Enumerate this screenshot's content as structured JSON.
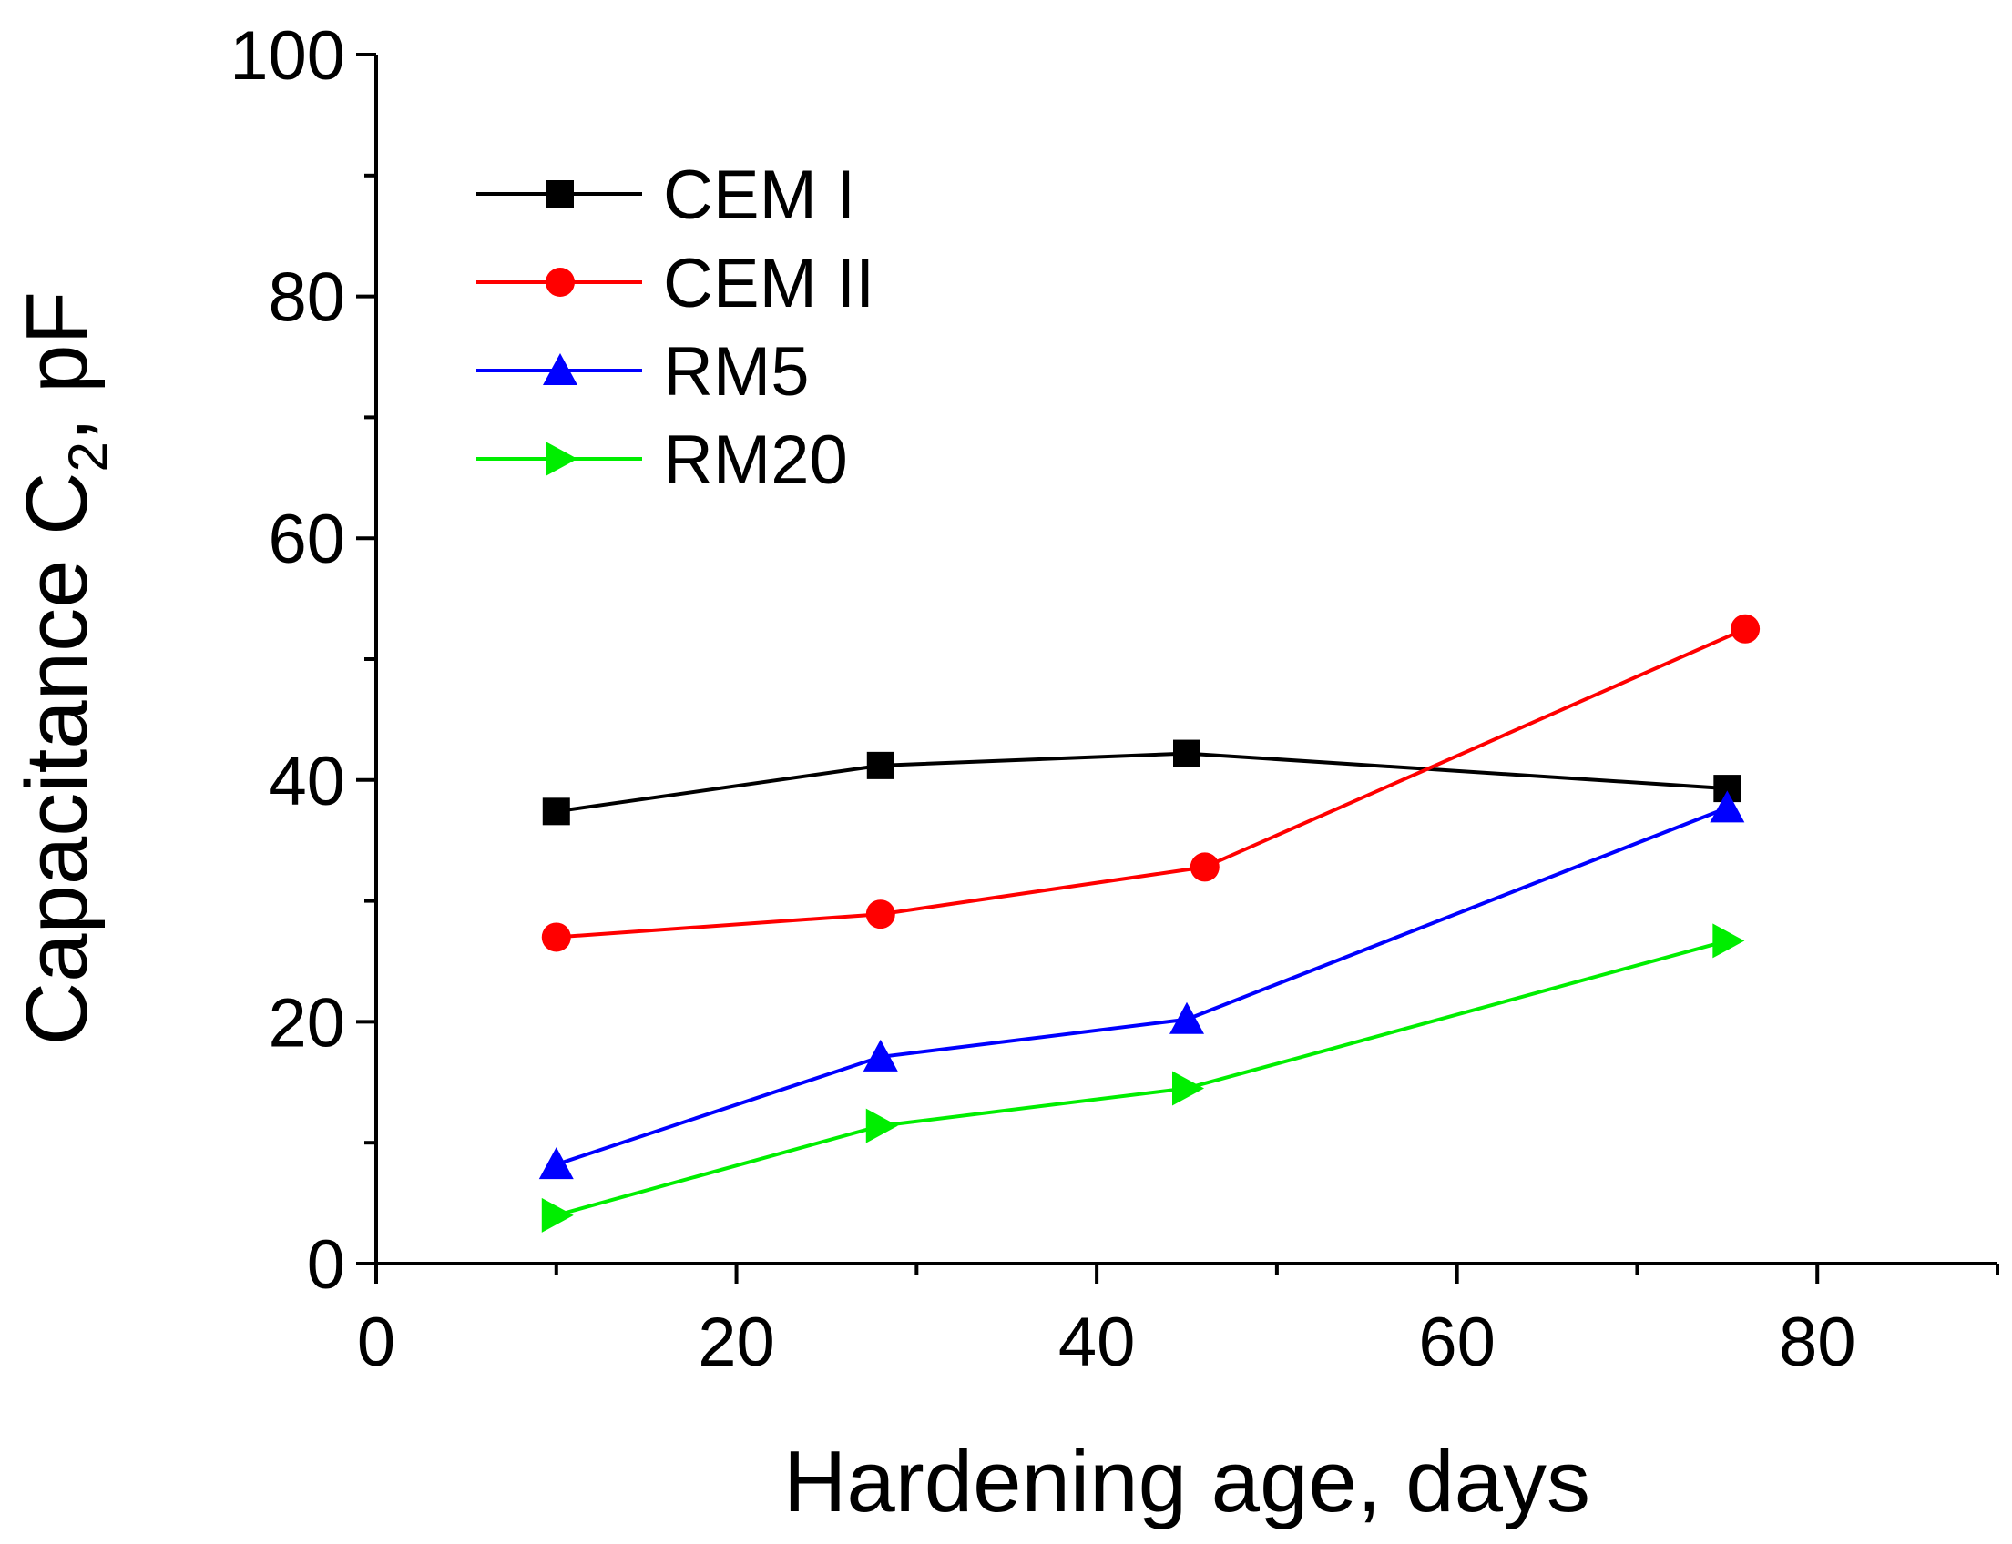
{
  "chart_data": {
    "type": "line",
    "title": "",
    "xlabel": "Hardening age, days",
    "ylabel": {
      "main": "Capacitance C",
      "subscript": "2",
      "suffix": ", pF"
    },
    "xlim": [
      0,
      90
    ],
    "ylim": [
      0,
      100
    ],
    "xticks": [
      0,
      20,
      40,
      60,
      80
    ],
    "xticks_minor": [
      10,
      30,
      50,
      70,
      90
    ],
    "yticks": [
      0,
      20,
      40,
      60,
      80,
      100
    ],
    "yticks_minor": [
      10,
      30,
      50,
      70,
      90
    ],
    "grid": false,
    "legend_position": "top-left",
    "series": [
      {
        "name": "CEM I",
        "color": "#000000",
        "marker": "square",
        "x": [
          10,
          28,
          45,
          75
        ],
        "y": [
          37.4,
          41.2,
          42.2,
          39.3
        ]
      },
      {
        "name": "CEM II",
        "color": "#ff0000",
        "marker": "circle",
        "x": [
          10,
          28,
          46,
          76
        ],
        "y": [
          27.0,
          28.9,
          32.8,
          52.5
        ]
      },
      {
        "name": "RM5",
        "color": "#0000ff",
        "marker": "triangle-up",
        "x": [
          10,
          28,
          45,
          75
        ],
        "y": [
          8.2,
          17.1,
          20.2,
          37.7
        ]
      },
      {
        "name": "RM20",
        "color": "#00ee00",
        "marker": "triangle-right",
        "x": [
          10,
          28,
          45,
          75
        ],
        "y": [
          4.0,
          11.4,
          14.5,
          26.7
        ]
      }
    ]
  }
}
